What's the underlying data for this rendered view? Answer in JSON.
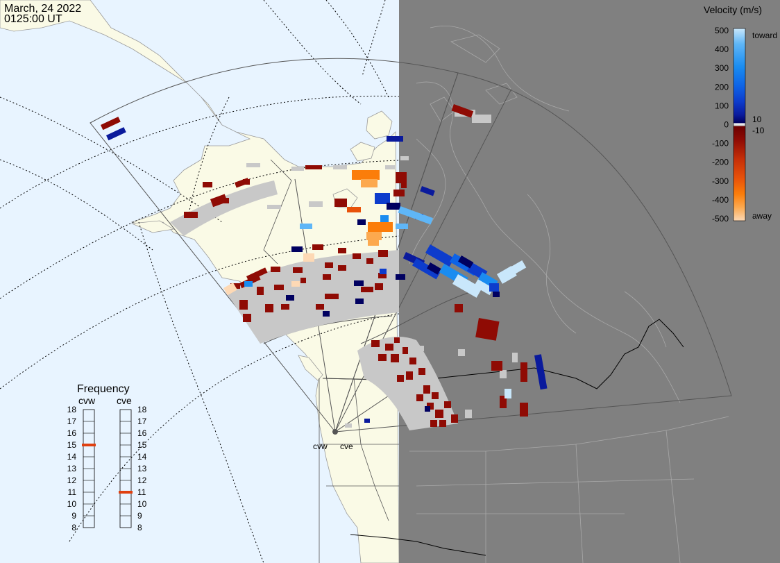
{
  "header": {
    "date": "March, 24 2022",
    "time": "0125:00 UT"
  },
  "velocity_scale": {
    "title": "Velocity (m/s)",
    "ticks": [
      "500",
      "400",
      "300",
      "200",
      "100",
      "0",
      "-100",
      "-200",
      "-300",
      "-400",
      "-500"
    ],
    "extra_ticks": [
      "10",
      "-10"
    ],
    "toward_label": "toward",
    "away_label": "away",
    "colors": [
      "#fdd9b5",
      "#fca94f",
      "#fb7d0a",
      "#e8520a",
      "#c62f08",
      "#8f0b04",
      "#6c0000",
      "#ffffff",
      "#000060",
      "#0a1a9c",
      "#0d3ccc",
      "#0e63e6",
      "#1a8cf0",
      "#5fb6f7",
      "#c9e7fb"
    ]
  },
  "frequency": {
    "title": "Frequency",
    "left_label": "cvw",
    "right_label": "cve",
    "levels": [
      "18",
      "17",
      "16",
      "15",
      "14",
      "13",
      "12",
      "11",
      "10",
      "9",
      "8"
    ],
    "cvw_value": 15,
    "cve_value": 11,
    "marker_color": "#e04010"
  },
  "radar_site": {
    "labels": [
      "cvw",
      "cve"
    ]
  },
  "colors": {
    "ocean": "#e8f4ff",
    "land": "#fafae6",
    "night": "#808080",
    "ground_scatter": "#c8c8c8",
    "field_of_view": "#555555"
  }
}
